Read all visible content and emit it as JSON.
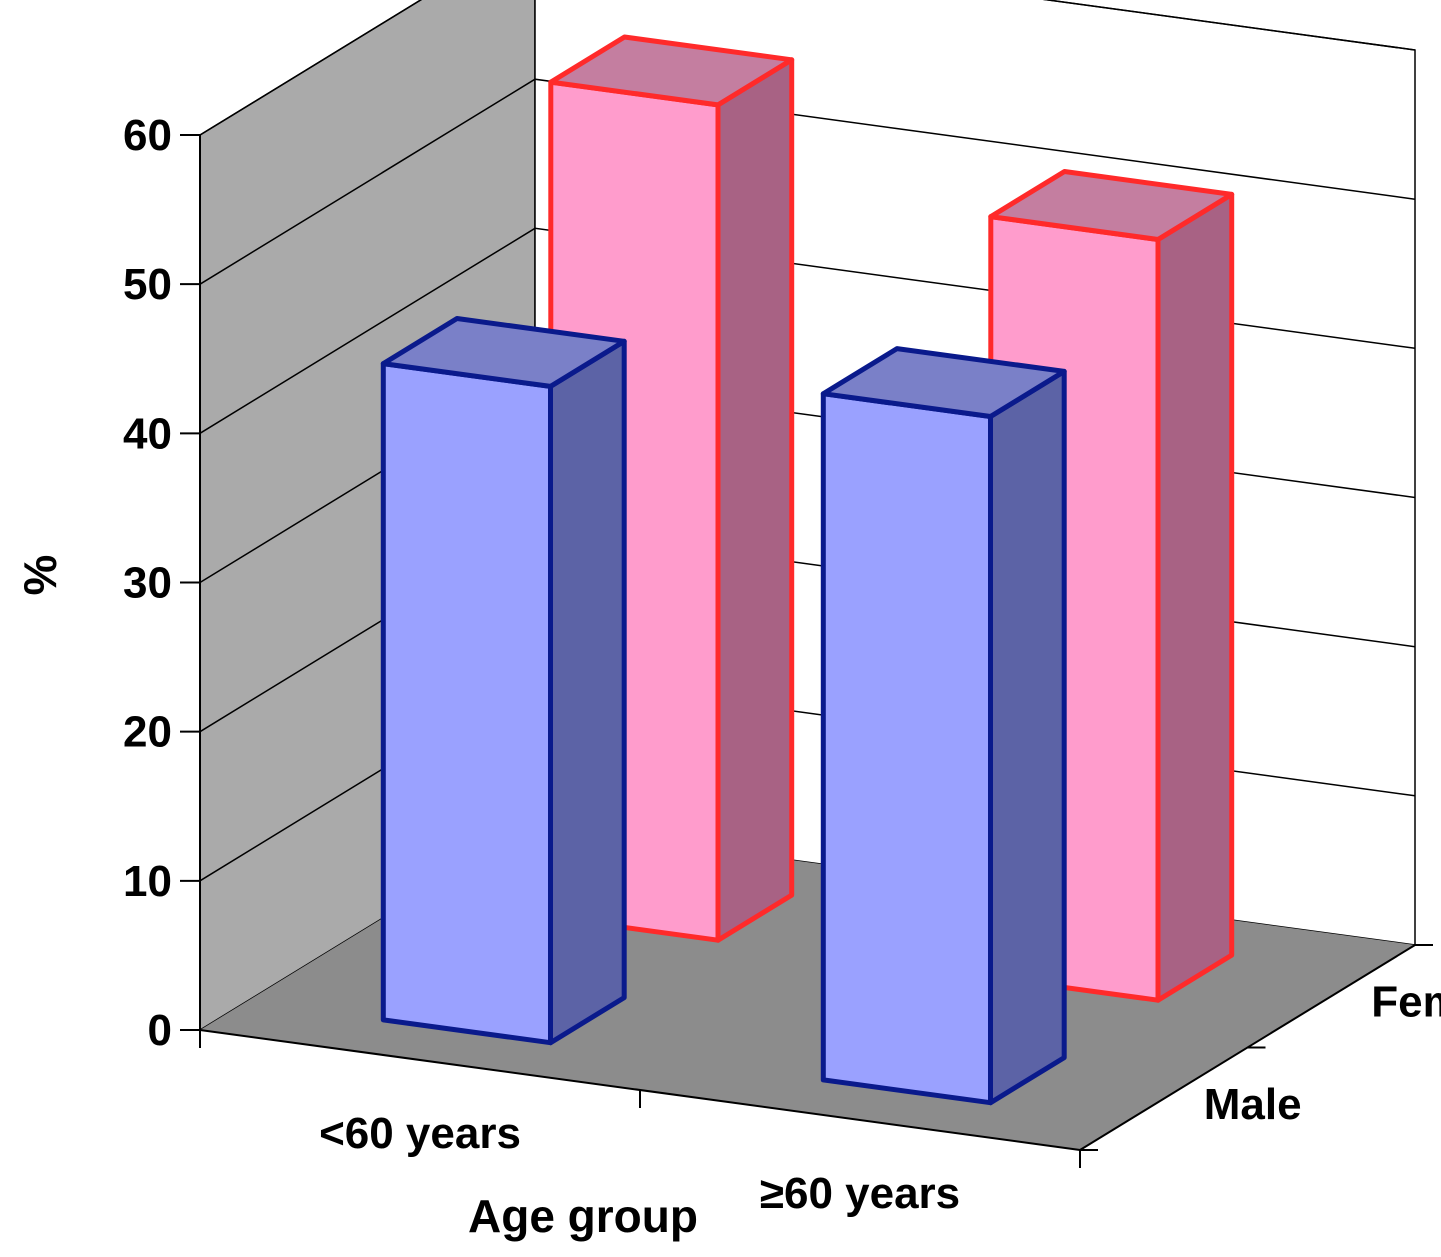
{
  "chart_data": {
    "type": "bar",
    "subtype": "3d-column",
    "categories": [
      "<60 years",
      "≥60 years"
    ],
    "series": [
      {
        "name": "Male",
        "values": [
          44,
          46
        ],
        "face_color": "#9aa1ff",
        "side_color": "#5c63a6",
        "top_color": "#7a80c8",
        "edge_color": "#0a1a8c"
      },
      {
        "name": "Female",
        "values": [
          56,
          51
        ],
        "face_color": "#ff9ccc",
        "side_color": "#a86284",
        "top_color": "#c47ea0",
        "edge_color": "#ff2a2a"
      }
    ],
    "xlabel": "Age group",
    "ylabel": "%",
    "ylim": [
      0,
      60
    ],
    "yticks": [
      "0",
      "10",
      "20",
      "30",
      "40",
      "50",
      "60"
    ],
    "grid": true,
    "colors": {
      "left_wall": "#aaaaaa",
      "floor": "#8c8c8c",
      "back_wall": "#ffffff",
      "gridline": "#000000"
    }
  }
}
